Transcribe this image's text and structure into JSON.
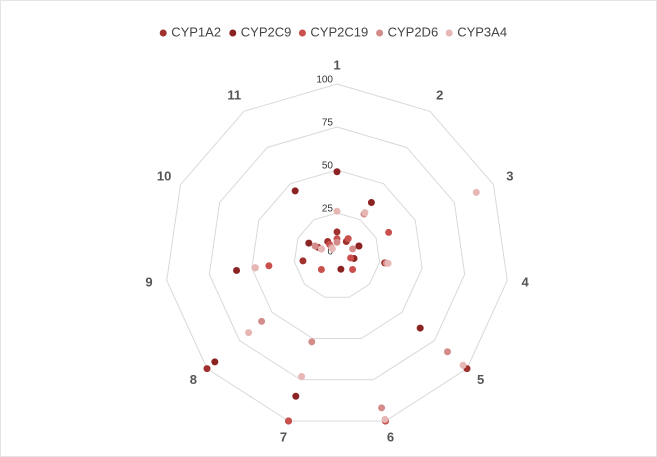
{
  "chart_data": {
    "type": "radar",
    "categories": [
      "1",
      "2",
      "3",
      "4",
      "5",
      "6",
      "7",
      "8",
      "9",
      "10",
      "11"
    ],
    "ylim": [
      0,
      100
    ],
    "yticks": [
      0,
      25,
      50,
      75,
      100
    ],
    "series": [
      {
        "name": "CYP1A2",
        "color": "#a0312f",
        "values": [
          14,
          10,
          14,
          28,
          100,
          100,
          100,
          100,
          20,
          12,
          10
        ]
      },
      {
        "name": "CYP2C9",
        "color": "#8b2323",
        "values": [
          49,
          37,
          14,
          10,
          64,
          8,
          85,
          94,
          59,
          18,
          45
        ]
      },
      {
        "name": "CYP2C19",
        "color": "#c9504d",
        "values": [
          10,
          12,
          33,
          8,
          12,
          100,
          100,
          12,
          40,
          10,
          8
        ]
      },
      {
        "name": "CYP2D6",
        "color": "#d38c8a",
        "values": [
          8,
          29,
          10,
          29,
          85,
          92,
          52,
          58,
          48,
          14,
          6
        ]
      },
      {
        "name": "CYP3A4",
        "color": "#e6b7b5",
        "values": [
          26,
          30,
          89,
          30,
          97,
          99,
          73,
          68,
          48,
          10,
          5
        ]
      }
    ]
  }
}
